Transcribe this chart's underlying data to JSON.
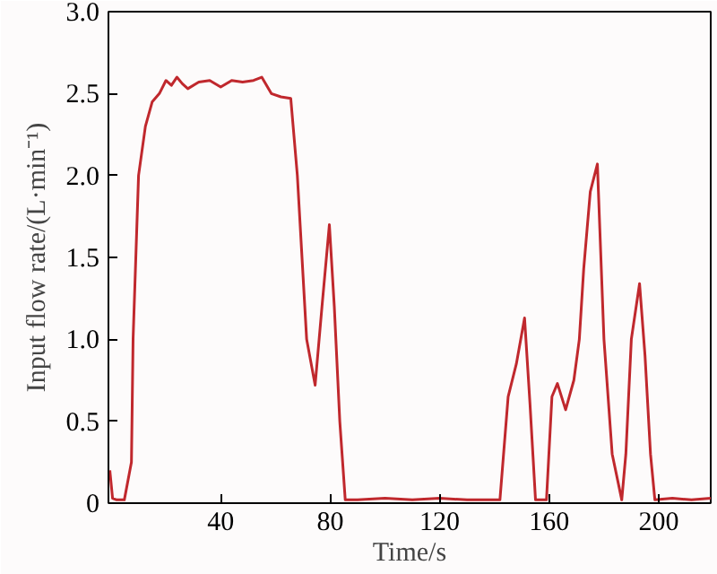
{
  "chart_data": {
    "type": "line",
    "xlabel": "Time/s",
    "ylabel": "Input flow rate/(L·min⁻¹)",
    "xlim": [
      -1,
      219
    ],
    "ylim": [
      0,
      3.0
    ],
    "xticks": [
      40,
      80,
      120,
      160,
      200
    ],
    "yticks": [
      {
        "value": 0,
        "label": "0"
      },
      {
        "value": 0.5,
        "label": "0.5"
      },
      {
        "value": 1.0,
        "label": "1.0"
      },
      {
        "value": 1.5,
        "label": "1.5"
      },
      {
        "value": 2.0,
        "label": "2.0"
      },
      {
        "value": 2.5,
        "label": "2.5"
      },
      {
        "value": 3.0,
        "label": "3.0"
      }
    ],
    "marker": "none",
    "line_style": "solid",
    "series": [
      {
        "color": "#c0282d",
        "x": [
          -0.5,
          0.5,
          2,
          4.8,
          7.4,
          8,
          10,
          12.5,
          15,
          17.6,
          20,
          22,
          24,
          26,
          28,
          32,
          36,
          40,
          44,
          48,
          52,
          55,
          58.5,
          62,
          65.6,
          68,
          71.4,
          74.5,
          77,
          79.7,
          81.5,
          83.5,
          85.5,
          90,
          100,
          110,
          120,
          130,
          140,
          142,
          145,
          148,
          151,
          153,
          155,
          157,
          159,
          161,
          163,
          166,
          169,
          171,
          172.6,
          175,
          177.6,
          180,
          183,
          186.5,
          188,
          190,
          193,
          195,
          197,
          198.6,
          205,
          212,
          219
        ],
        "values": [
          0.2,
          0.03,
          0.02,
          0.02,
          0.25,
          1.0,
          2.0,
          2.3,
          2.45,
          2.5,
          2.58,
          2.55,
          2.6,
          2.56,
          2.53,
          2.57,
          2.58,
          2.54,
          2.58,
          2.57,
          2.58,
          2.6,
          2.5,
          2.48,
          2.47,
          2.0,
          1.0,
          0.72,
          1.2,
          1.7,
          1.2,
          0.5,
          0.02,
          0.02,
          0.03,
          0.02,
          0.03,
          0.02,
          0.02,
          0.02,
          0.65,
          0.85,
          1.13,
          0.6,
          0.02,
          0.02,
          0.02,
          0.65,
          0.73,
          0.57,
          0.75,
          1.0,
          1.43,
          1.9,
          2.07,
          1.0,
          0.3,
          0.02,
          0.3,
          1.0,
          1.34,
          0.9,
          0.3,
          0.02,
          0.03,
          0.02,
          0.03
        ]
      }
    ]
  }
}
